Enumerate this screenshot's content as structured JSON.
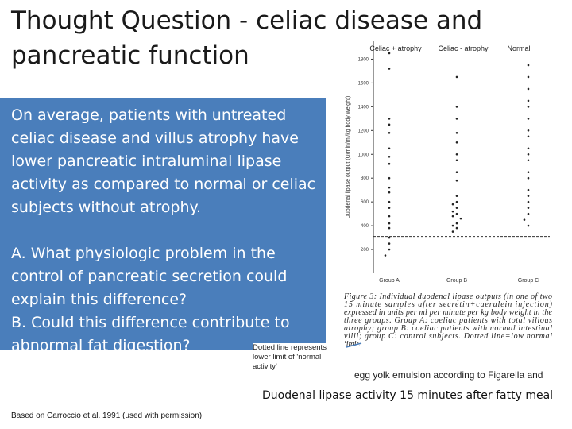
{
  "slide": {
    "title_lines": [
      "Thought Question - celiac disease and",
      "pancreatic function"
    ],
    "body_lines": [
      "On average, patients with untreated",
      "celiac disease and villus atrophy have",
      "lower pancreatic intraluminal lipase",
      "activity as compared to normal or celiac",
      "subjects without atrophy."
    ],
    "question_a": {
      "letter": "A",
      "lines": [
        ". What physiologic problem in the",
        "control of pancreatic secretion could",
        "explain this difference?"
      ]
    },
    "question_b": {
      "letter": "B",
      "lines": [
        ". Could this difference contribute to",
        "abnormal fat digestion?"
      ]
    },
    "callout": "Dotted line represents lower limit of 'normal activity'",
    "figure_label": "Duodenal lipase activity 15 minutes after fatty meal",
    "footer": "Based on Carroccio et al. 1991 (used with permission)"
  },
  "figure": {
    "y_label": "Duodenal lipase output (U/min/ml/kg body weight)",
    "ylim": [
      0,
      1950
    ],
    "yticks": [
      200,
      400,
      600,
      800,
      1000,
      1200,
      1400,
      1600,
      1800
    ],
    "threshold": 310,
    "groups": [
      {
        "header": "Celiac + atrophy",
        "name": "Group A",
        "values": [
          1850,
          1720,
          1300,
          1250,
          1180,
          1050,
          980,
          920,
          800,
          720,
          680,
          600,
          550,
          480,
          420,
          380,
          300,
          250,
          200,
          150
        ]
      },
      {
        "header": "Celiac - atrophy",
        "name": "Group B",
        "values": [
          1650,
          1400,
          1300,
          1180,
          1100,
          1000,
          950,
          850,
          780,
          650,
          600,
          580,
          550,
          520,
          500,
          480,
          460,
          420,
          400,
          380,
          350
        ]
      },
      {
        "header": "Normal",
        "name": "Group C",
        "values": [
          1750,
          1650,
          1550,
          1450,
          1400,
          1300,
          1200,
          1150,
          1050,
          1000,
          950,
          850,
          800,
          700,
          650,
          600,
          550,
          500,
          450,
          400
        ]
      }
    ],
    "caption_lines": [
      "Figure 3: Individual duodenal lipase outputs (in one of two",
      "15 minute samples after secretin+caerulein injection)",
      "expressed in units per ml per minute per kg body weight in the",
      "three groups. Group A: coeliac patients with total villous",
      "atrophy; group B: coeliac patients with normal intestinal",
      "villi; group C: control subjects. Dotted line=low normal",
      "limit."
    ],
    "extra_text": "egg yolk emulsion according to Figarella and"
  }
}
